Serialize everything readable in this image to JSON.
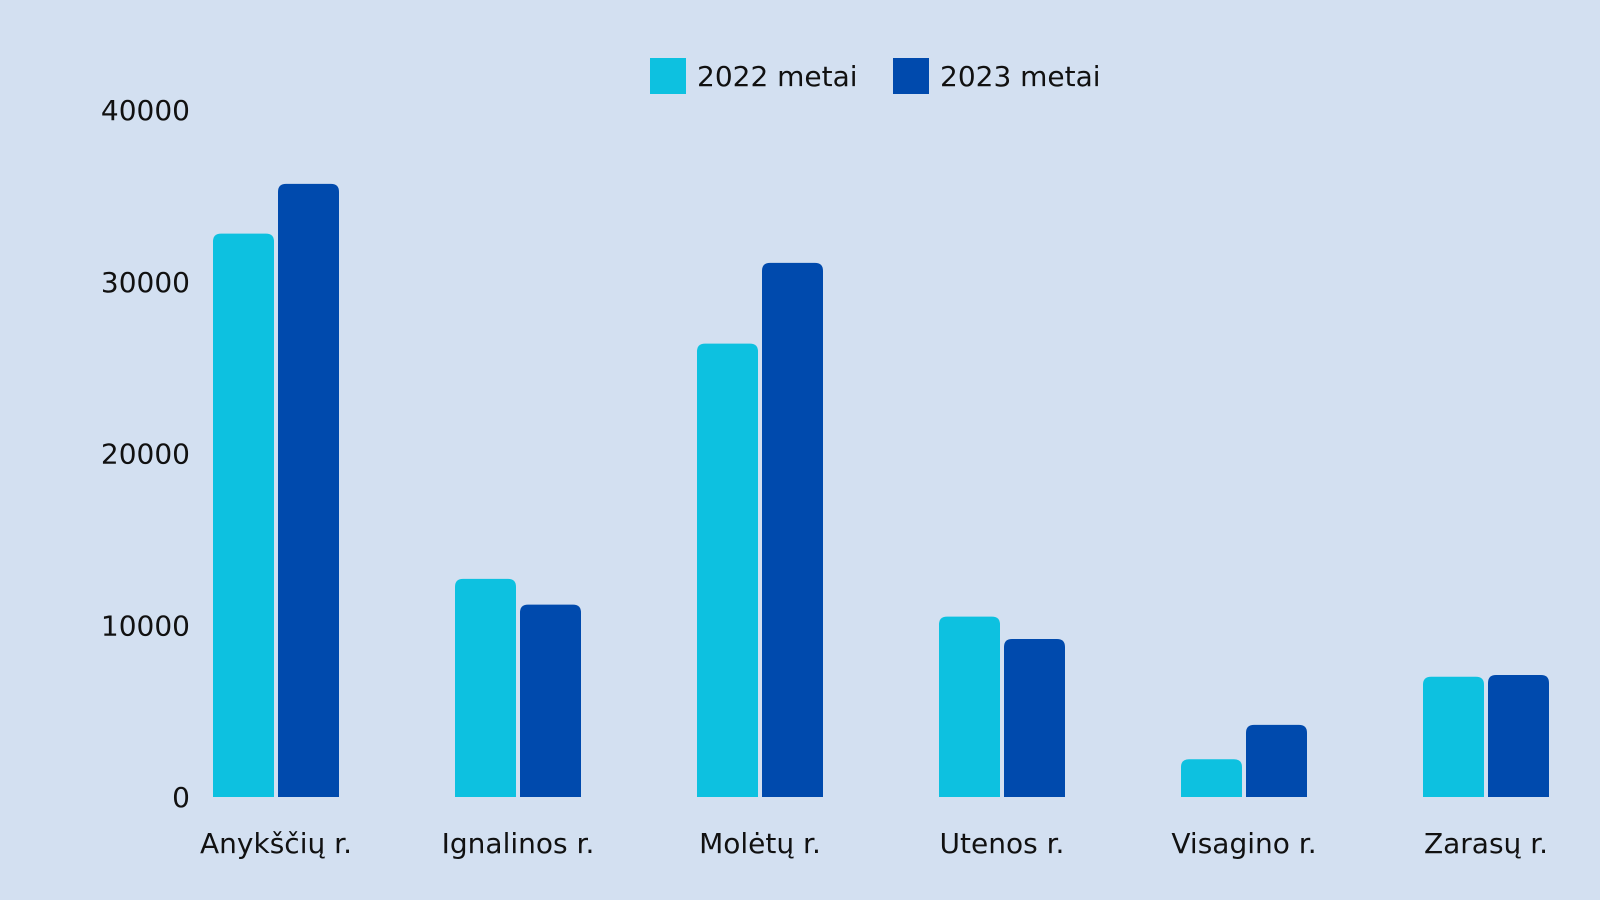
{
  "chart_data": {
    "type": "bar",
    "categories": [
      "Anykščių r.",
      "Ignalinos r.",
      "Molėtų r.",
      "Utenos r.",
      "Visagino r.",
      "Zarasų r."
    ],
    "series": [
      {
        "name": "2022 metai",
        "color": "#0dc1e0",
        "values": [
          32800,
          12700,
          26400,
          10500,
          2200,
          7000
        ]
      },
      {
        "name": "2023 metai",
        "color": "#004aad",
        "values": [
          35700,
          11200,
          31100,
          9200,
          4200,
          7100
        ]
      }
    ],
    "yticks": [
      "0",
      "10000",
      "20000",
      "30000",
      "40000"
    ],
    "ylim": [
      0,
      40000
    ],
    "legend_position": "top-center",
    "grid": false
  }
}
